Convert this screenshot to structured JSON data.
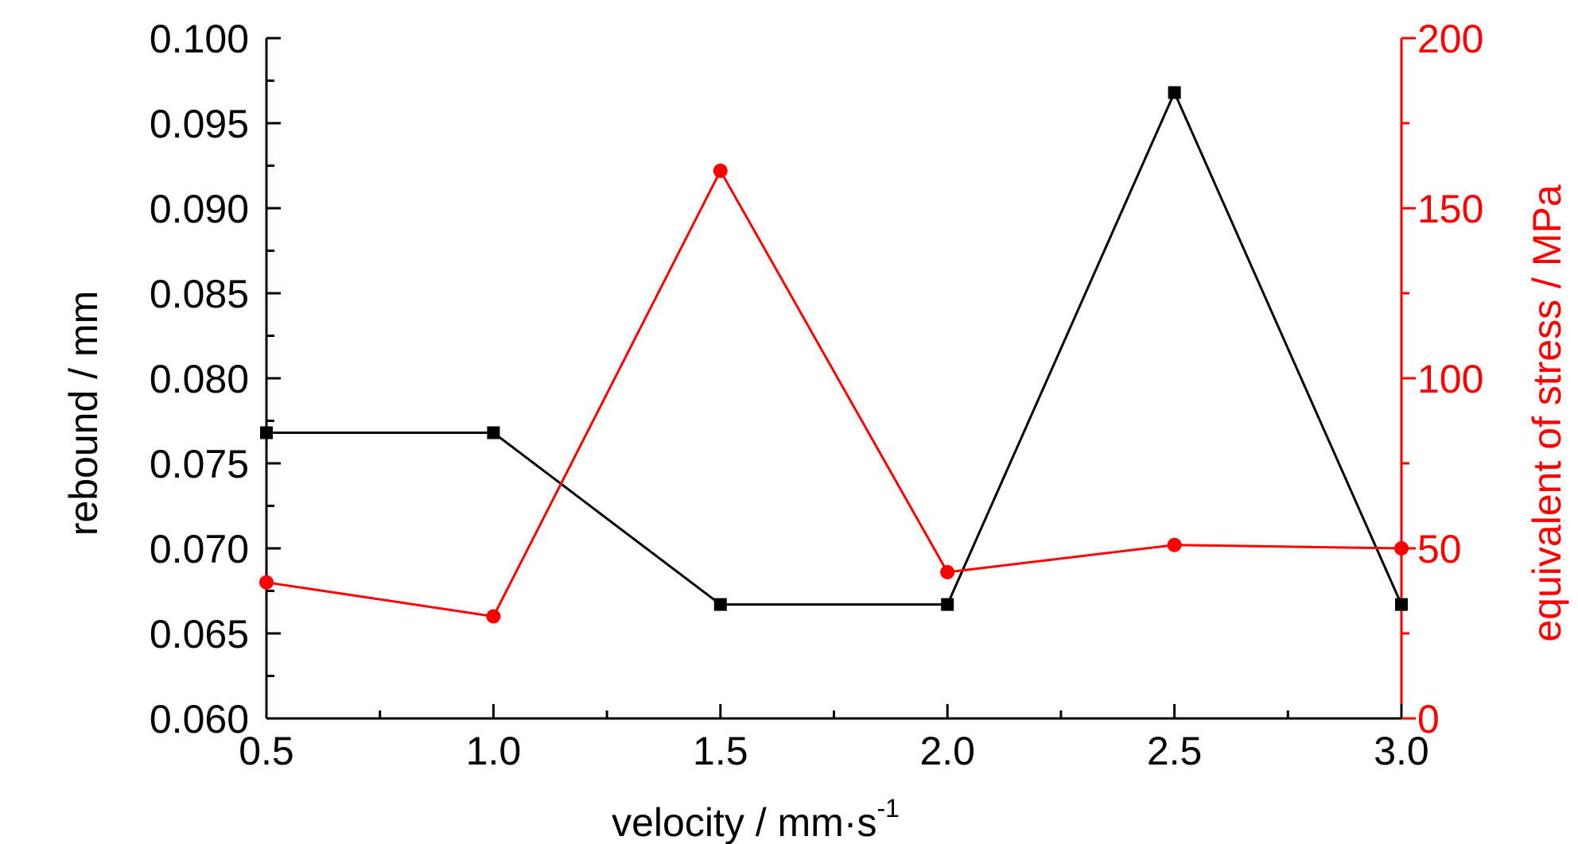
{
  "chart_data": {
    "type": "line",
    "x": [
      0.5,
      1.0,
      1.5,
      2.0,
      2.5,
      3.0
    ],
    "xlabel": "velocity / mm·s",
    "xlabel_superscript": "-1",
    "xlim": [
      0.5,
      3.0
    ],
    "x_ticks": [
      "0.5",
      "1.0",
      "1.5",
      "2.0",
      "2.5",
      "3.0"
    ],
    "ylabel_left": "rebound / mm",
    "ylim_left": [
      0.06,
      0.1
    ],
    "y_ticks_left": [
      "0.060",
      "0.065",
      "0.070",
      "0.075",
      "0.080",
      "0.085",
      "0.090",
      "0.095",
      "0.100"
    ],
    "ylabel_right": "equivalent of stress / MPa",
    "ylim_right": [
      0,
      200
    ],
    "y_ticks_right": [
      "0",
      "50",
      "100",
      "150",
      "200"
    ],
    "series": [
      {
        "axis": "left",
        "color": "#000000",
        "marker": "square",
        "values": [
          0.0768,
          0.0768,
          0.0667,
          0.0667,
          0.0968,
          0.0667
        ]
      },
      {
        "axis": "right",
        "color": "#ff0000",
        "marker": "circle",
        "values": [
          40,
          30,
          161,
          43,
          51,
          50
        ]
      }
    ],
    "grid": false,
    "legend": "none"
  }
}
